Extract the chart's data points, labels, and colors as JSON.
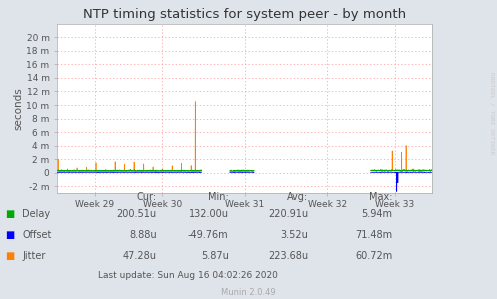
{
  "title": "NTP timing statistics for system peer - by month",
  "ylabel": "seconds",
  "background_color": "#dfe3ea",
  "plot_bg_color": "#ffffff",
  "watermark": "RRDTOOL / TOBI OETIKER",
  "munin_version": "Munin 2.0.49",
  "last_update": "Last update: Sun Aug 16 04:02:26 2020",
  "ytick_labels": [
    "-2 m",
    "0",
    "2 m",
    "4 m",
    "6 m",
    "8 m",
    "10 m",
    "12 m",
    "14 m",
    "16 m",
    "18 m",
    "20 m"
  ],
  "ytick_values": [
    -0.002,
    0.0,
    0.002,
    0.004,
    0.006,
    0.008,
    0.01,
    0.012,
    0.014,
    0.016,
    0.018,
    0.02
  ],
  "ylim": [
    -0.003,
    0.022
  ],
  "xlim": [
    0.0,
    1.0
  ],
  "xtick_labels": [
    "Week 29",
    "Week 30",
    "Week 31",
    "Week 32",
    "Week 33"
  ],
  "xtick_positions": [
    0.1,
    0.28,
    0.5,
    0.72,
    0.9
  ],
  "delay_color": "#00aa00",
  "offset_color": "#0000ff",
  "jitter_color": "#ff7f00",
  "grid_color": "#ff9999",
  "spine_color": "#aaaaaa",
  "text_color": "#555555",
  "watermark_color": "#cccccc",
  "legend": [
    {
      "label": "Delay",
      "color": "#00aa00"
    },
    {
      "label": "Offset",
      "color": "#0000ff"
    },
    {
      "label": "Jitter",
      "color": "#ff7f00"
    }
  ],
  "stats": {
    "cur": {
      "delay": "200.51u",
      "offset": "8.88u",
      "jitter": "47.28u"
    },
    "min": {
      "delay": "132.00u",
      "offset": "-49.76m",
      "jitter": "5.87u"
    },
    "avg": {
      "delay": "220.91u",
      "offset": "3.52u",
      "jitter": "223.68u"
    },
    "max": {
      "delay": "5.94m",
      "offset": "71.48m",
      "jitter": "60.72m"
    }
  }
}
